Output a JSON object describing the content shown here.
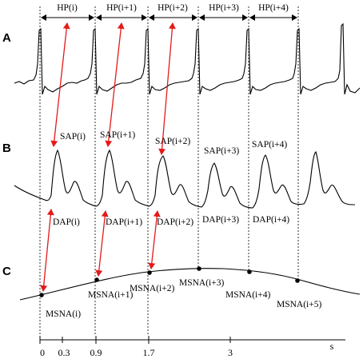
{
  "panels": [
    "A",
    "B",
    "C"
  ],
  "hp_labels": [
    "HP(i)",
    "HP(i+1)",
    "HP(i+2)",
    "HP(i+3)",
    "HP(i+4)"
  ],
  "sap_labels": [
    "SAP(i)",
    "SAP(i+1)",
    "SAP(i+2)",
    "SAP(i+3)",
    "SAP(i+4)"
  ],
  "dap_labels": [
    "DAP(i)",
    "DAP(i+1)",
    "DAP(i+2)",
    "DAP(i+3)",
    "DAP(i+4)"
  ],
  "msna_labels": [
    "MSNA(i)",
    "MSNA(i+1)",
    "MSNA(i+2)",
    "MSNA(i+3)",
    "MSNA(i+4)",
    "MSNA(i+5)"
  ],
  "time_axis": {
    "unit": "s",
    "ticks": [
      "0",
      "0.3",
      "0.9",
      "1.7",
      "3"
    ]
  },
  "colors": {
    "trace": "#000000",
    "arrow": "#e31b1b",
    "guide": "#000000"
  }
}
